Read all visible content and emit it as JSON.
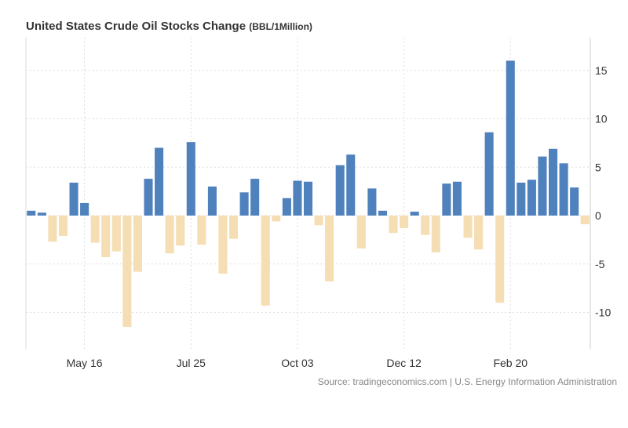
{
  "title": "United States Crude Oil Stocks Change",
  "unit": "(BBL/1Million)",
  "source": "Source: tradingeconomics.com | U.S. Energy Information Administration",
  "chart_data": {
    "type": "bar",
    "title": "United States Crude Oil Stocks Change (BBL/1Million)",
    "x_tick_labels": [
      {
        "index": 5,
        "label": "May 16"
      },
      {
        "index": 15,
        "label": "Jul 25"
      },
      {
        "index": 25,
        "label": "Oct 03"
      },
      {
        "index": 35,
        "label": "Dec 12"
      },
      {
        "index": 45,
        "label": "Feb 20"
      }
    ],
    "values": [
      0.5,
      0.3,
      -2.7,
      -2.1,
      3.4,
      1.3,
      -2.8,
      -4.3,
      -3.7,
      -11.5,
      -5.8,
      3.8,
      7.0,
      -3.9,
      -3.1,
      7.6,
      -3.0,
      3.0,
      -6.0,
      -2.4,
      2.4,
      3.8,
      -9.3,
      -0.6,
      1.8,
      3.6,
      3.5,
      -1.0,
      -6.8,
      5.2,
      6.3,
      -3.4,
      2.8,
      0.5,
      -1.8,
      -1.3,
      0.4,
      -2.0,
      -3.8,
      3.3,
      3.5,
      -2.3,
      -3.5,
      8.6,
      -9.0,
      16.0,
      3.4,
      3.7,
      6.1,
      6.9,
      5.4,
      2.9,
      -0.9
    ],
    "y_ticks": [
      15,
      10,
      5,
      0,
      -5,
      -10
    ],
    "ylim": [
      -13.8,
      17.5
    ],
    "y_axis_position": "right",
    "grid": true,
    "colors": {
      "positive": "#4f81bd",
      "negative": "#f5deb3"
    }
  }
}
